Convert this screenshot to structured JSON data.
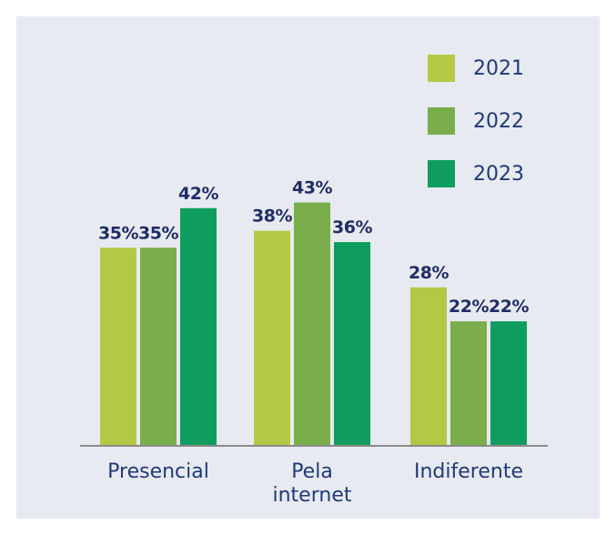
{
  "chart_data": {
    "type": "bar",
    "categories": [
      "Presencial",
      "Pela internet",
      "Indiferente"
    ],
    "series": [
      {
        "name": "2021",
        "color": "#b5c843",
        "values": [
          35,
          38,
          28
        ],
        "value_labels": [
          "35%",
          "38%",
          "28%"
        ]
      },
      {
        "name": "2022",
        "color": "#79ae4b",
        "values": [
          35,
          43,
          22
        ],
        "value_labels": [
          "35%",
          "43%",
          "22%"
        ]
      },
      {
        "name": "2023",
        "color": "#0f9d5f",
        "values": [
          42,
          36,
          22
        ],
        "value_labels": [
          "42%",
          "36%",
          "22%"
        ]
      }
    ],
    "legend": "upper right"
  }
}
